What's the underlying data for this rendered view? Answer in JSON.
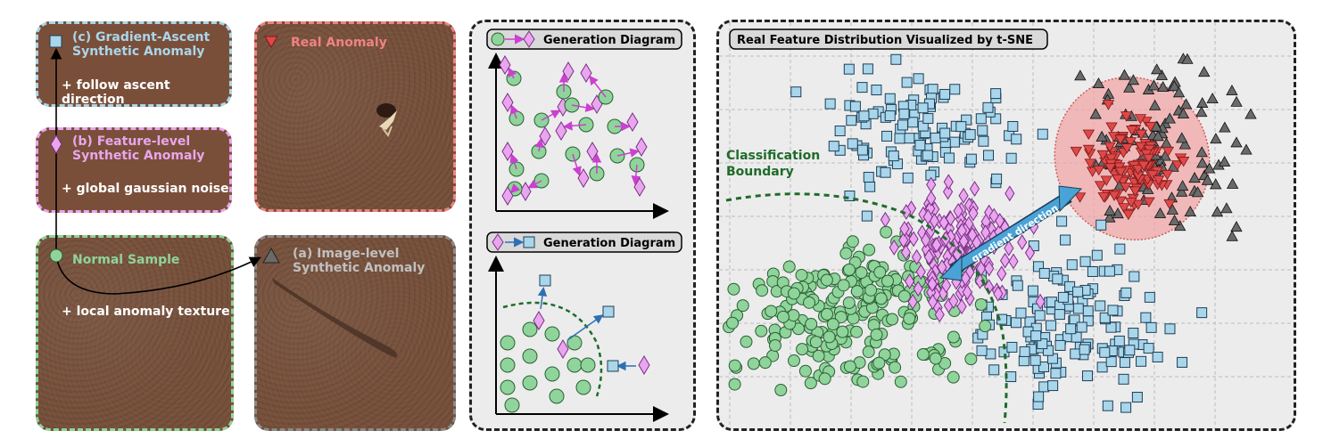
{
  "tiles": {
    "gradient": {
      "title_line1": "(c) Gradient-Ascent",
      "title_line2": "Synthetic Anomaly",
      "note": "+ follow ascent direction"
    },
    "feature": {
      "title_line1": "(b) Feature-level",
      "title_line2": "Synthetic Anomaly",
      "note": "+ global gaussian noise"
    },
    "normal": {
      "title": "Normal Sample",
      "note": "+ local anomaly texture"
    },
    "real": {
      "title": "Real Anomaly"
    },
    "image": {
      "title_line1": "(a) Image-level",
      "title_line2": "Synthetic Anomaly"
    }
  },
  "diagrams": {
    "top_title": "Generation Diagram",
    "bottom_title": "Generation Diagram"
  },
  "scatter": {
    "title": "Real Feature Distribution Visualized by t-SNE",
    "boundary_label_line1": "Classification",
    "boundary_label_line2": "Boundary",
    "arrow_label": "gradient direction"
  },
  "colors": {
    "normal": "#8fd49a",
    "normal_edge": "#2b5e34",
    "feature": "#e9a6ee",
    "feature_edge": "#7a2f86",
    "gradient": "#a9d6ea",
    "gradient_edge": "#1d3f58",
    "real": "#e04848",
    "real_region": "#f2a3a3",
    "image_level": "#6a6a6a",
    "boundary": "#1f6b2a",
    "arrow": "#4aa3d6"
  }
}
